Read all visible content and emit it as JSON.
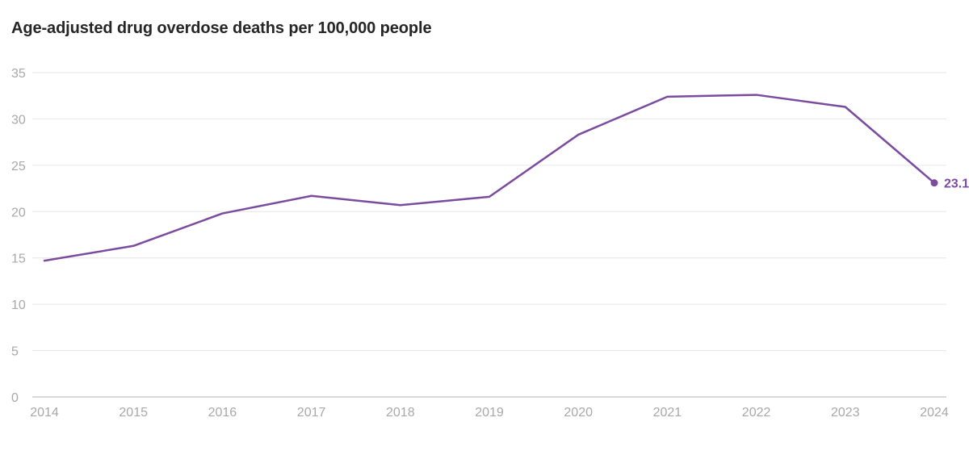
{
  "chart_data": {
    "type": "line",
    "title": "Age-adjusted drug overdose deaths per 100,000 people",
    "xlabel": "",
    "ylabel": "",
    "x": [
      "2014",
      "2015",
      "2016",
      "2017",
      "2018",
      "2019",
      "2020",
      "2021",
      "2022",
      "2023",
      "2024"
    ],
    "series": [
      {
        "name": "Age-adjusted drug overdose deaths per 100,000 people",
        "values": [
          14.7,
          16.3,
          19.8,
          21.7,
          20.7,
          21.6,
          28.3,
          32.4,
          32.6,
          31.3,
          23.1
        ],
        "color": "#7b4b9e"
      }
    ],
    "ylim": [
      0,
      35
    ],
    "yticks": [
      0,
      5,
      10,
      15,
      20,
      25,
      30,
      35
    ],
    "end_label": "23.1",
    "grid": true,
    "colors": {
      "line": "#7b4b9e",
      "grid": "#e6e6e6",
      "baseline": "#b3b3b3",
      "tick_text": "#a8a8a8",
      "title": "#262626"
    }
  }
}
